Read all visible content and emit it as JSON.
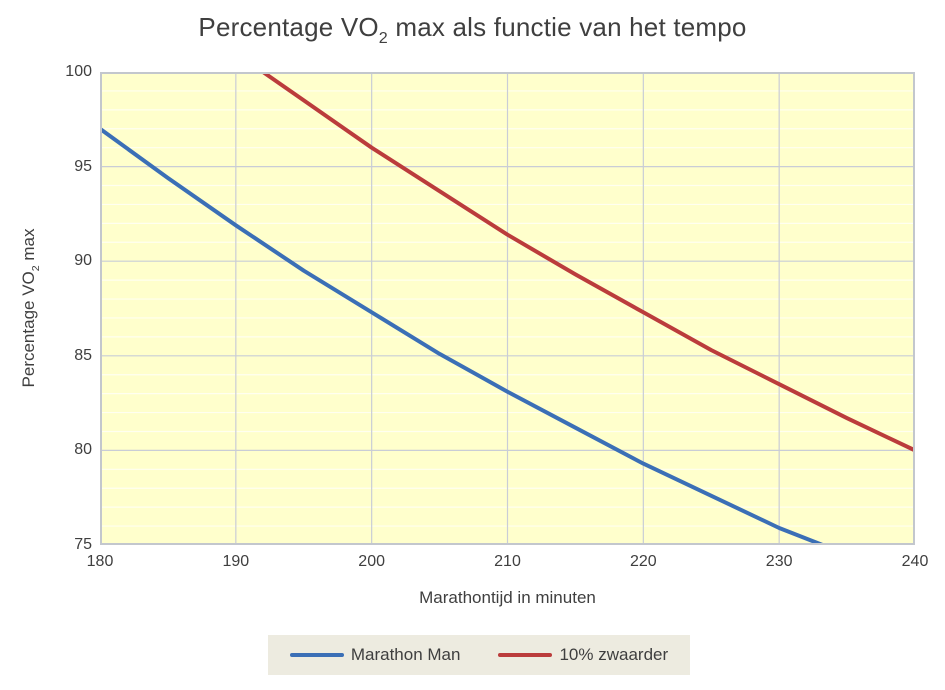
{
  "title": {
    "prefix": "Percentage VO",
    "subscript": "2",
    "suffix": " max als functie van het tempo"
  },
  "y_axis": {
    "label_prefix": "Percentage VO",
    "label_subscript": "2",
    "label_suffix": " max"
  },
  "x_axis": {
    "label": "Marathontijd in minuten"
  },
  "legend": {
    "items": [
      "Marathon Man",
      "10% zwaarder"
    ],
    "position": "bottom-center"
  },
  "colors": {
    "text": "#3F3F3F",
    "plot_background": "#FFFFCC",
    "minor_gridline": "#FFFFFF",
    "major_gridline": "#C9CDD6",
    "plot_border": "#C3C7CD",
    "legend_background": "#EDEBE0"
  },
  "chart_data": {
    "type": "line",
    "title": "Percentage VO2 max als functie van het tempo",
    "xlabel": "Marathontijd in minuten",
    "ylabel": "Percentage VO2 max",
    "xlim": [
      180,
      240
    ],
    "ylim": [
      75,
      100
    ],
    "x_ticks": [
      180,
      190,
      200,
      210,
      220,
      230,
      240
    ],
    "y_ticks": [
      75,
      80,
      85,
      90,
      95,
      100
    ],
    "grid": {
      "y_minor_step": 1,
      "y_major_step": 5,
      "x_major_step": 10,
      "x_minor": false
    },
    "legend_position": "bottom-center",
    "series": [
      {
        "name": "Marathon Man",
        "color": "#3B6FB6",
        "points": [
          [
            180,
            97.0
          ],
          [
            185,
            94.4
          ],
          [
            190,
            91.9
          ],
          [
            195,
            89.5
          ],
          [
            200,
            87.3
          ],
          [
            205,
            85.1
          ],
          [
            210,
            83.1
          ],
          [
            215,
            81.2
          ],
          [
            220,
            79.3
          ],
          [
            225,
            77.6
          ],
          [
            230,
            75.9
          ],
          [
            233.2,
            75.0
          ]
        ]
      },
      {
        "name": "10% zwaarder",
        "color": "#BB3C3C",
        "points": [
          [
            192,
            100.0
          ],
          [
            195,
            98.5
          ],
          [
            200,
            96.0
          ],
          [
            205,
            93.7
          ],
          [
            210,
            91.4
          ],
          [
            215,
            89.3
          ],
          [
            220,
            87.3
          ],
          [
            225,
            85.3
          ],
          [
            230,
            83.5
          ],
          [
            235,
            81.7
          ],
          [
            240,
            80.0
          ]
        ]
      }
    ]
  }
}
